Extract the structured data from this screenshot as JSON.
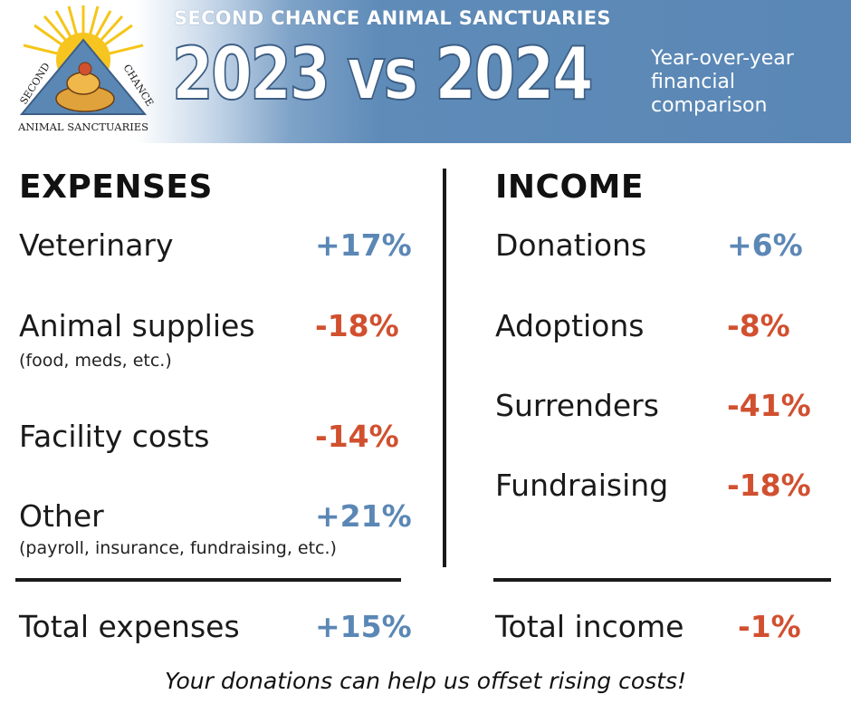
{
  "header": {
    "logo": {
      "top_text_left": "SECOND",
      "top_text_right": "CHANCE",
      "bottom_text": "ANIMAL SANCTUARIES"
    },
    "org_name": "SECOND CHANCE ANIMAL SANCTUARIES",
    "headline": "2023 vs 2024",
    "subtitle_lines": [
      "Year-over-year",
      "financial",
      "comparison"
    ],
    "bg_color": "#5a87b5"
  },
  "expenses": {
    "title": "EXPENSES",
    "items": [
      {
        "label": "Veterinary",
        "note": "",
        "change": "+17%",
        "direction": "up"
      },
      {
        "label": "Animal supplies",
        "note": "(food, meds, etc.)",
        "change": "-18%",
        "direction": "down"
      },
      {
        "label": "Facility costs",
        "note": "",
        "change": "-14%",
        "direction": "down"
      },
      {
        "label": "Other",
        "note": "(payroll, insurance, fundraising, etc.)",
        "change": "+21%",
        "direction": "up"
      }
    ],
    "total": {
      "label": "Total expenses",
      "change": "+15%",
      "direction": "up"
    }
  },
  "income": {
    "title": "INCOME",
    "items": [
      {
        "label": "Donations",
        "change": "+6%",
        "direction": "up"
      },
      {
        "label": "Adoptions",
        "change": "-8%",
        "direction": "down"
      },
      {
        "label": "Surrenders",
        "change": "-41%",
        "direction": "down"
      },
      {
        "label": "Fundraising",
        "change": "-18%",
        "direction": "down"
      }
    ],
    "total": {
      "label": "Total income",
      "change": "-1%",
      "direction": "down"
    }
  },
  "footer": {
    "message": "Your donations can help us offset rising costs!"
  },
  "colors": {
    "increase": "#5b87b5",
    "decrease": "#d1502f",
    "header_blue": "#5a87b5",
    "sun_yellow": "#f5c518"
  }
}
